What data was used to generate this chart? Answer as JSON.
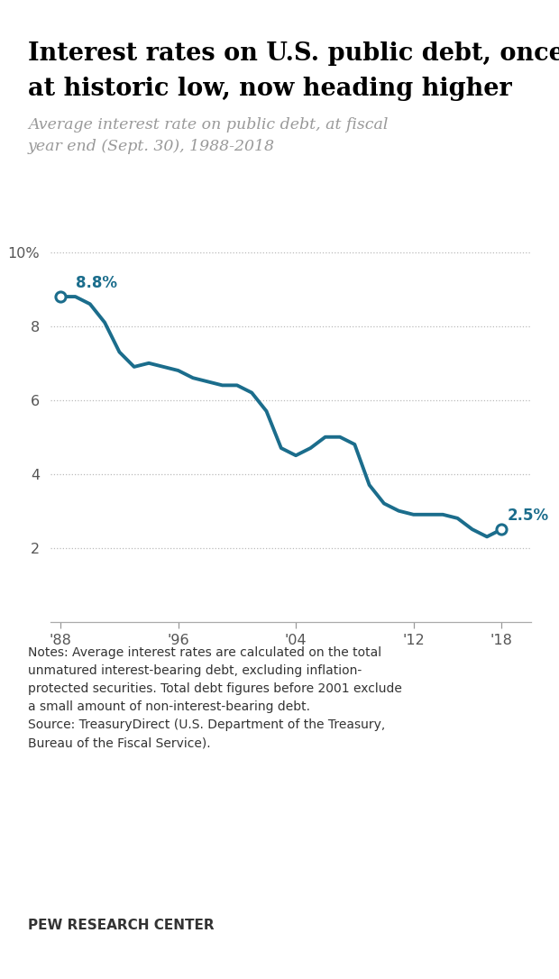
{
  "title_line1": "Interest rates on U.S. public debt, once",
  "title_line2": "at historic low, now heading higher",
  "subtitle": "Average interest rate on public debt, at fiscal\nyear end (Sept. 30), 1988-2018",
  "years": [
    1988,
    1989,
    1990,
    1991,
    1992,
    1993,
    1994,
    1995,
    1996,
    1997,
    1998,
    1999,
    2000,
    2001,
    2002,
    2003,
    2004,
    2005,
    2006,
    2007,
    2008,
    2009,
    2010,
    2011,
    2012,
    2013,
    2014,
    2015,
    2016,
    2017,
    2018
  ],
  "values": [
    8.8,
    8.8,
    8.6,
    8.1,
    7.3,
    6.9,
    7.0,
    6.9,
    6.8,
    6.6,
    6.5,
    6.4,
    6.4,
    6.2,
    5.7,
    4.7,
    4.5,
    4.7,
    5.0,
    5.0,
    4.8,
    3.7,
    3.2,
    3.0,
    2.9,
    2.9,
    2.9,
    2.8,
    2.5,
    2.3,
    2.5
  ],
  "line_color": "#1b6d8c",
  "line_width": 2.8,
  "dot_color_fill": "#ffffff",
  "dot_color_edge": "#1b6d8c",
  "annotation_color": "#1b6d8c",
  "ylim": [
    0,
    11.0
  ],
  "yticks": [
    2,
    4,
    6,
    8,
    10
  ],
  "ytick_labels": [
    "2",
    "4",
    "6",
    "8",
    "10%"
  ],
  "xtick_positions": [
    1988,
    1996,
    2004,
    2012,
    2018
  ],
  "xtick_labels": [
    "'88",
    "'96",
    "'04",
    "'12",
    "'18"
  ],
  "grid_color": "#bbbbbb",
  "notes_text": "Notes: Average interest rates are calculated on the total\nunmatured interest-bearing debt, excluding inflation-\nprotected securities. Total debt figures before 2001 exclude\na small amount of non-interest-bearing debt.\nSource: TreasuryDirect (U.S. Department of the Treasury,\nBureau of the Fiscal Service).",
  "footer_text": "PEW RESEARCH CENTER",
  "background_color": "#ffffff",
  "top_line_color": "#cc0000",
  "annotation_88_label": "8.8%",
  "annotation_18_label": "2.5%"
}
